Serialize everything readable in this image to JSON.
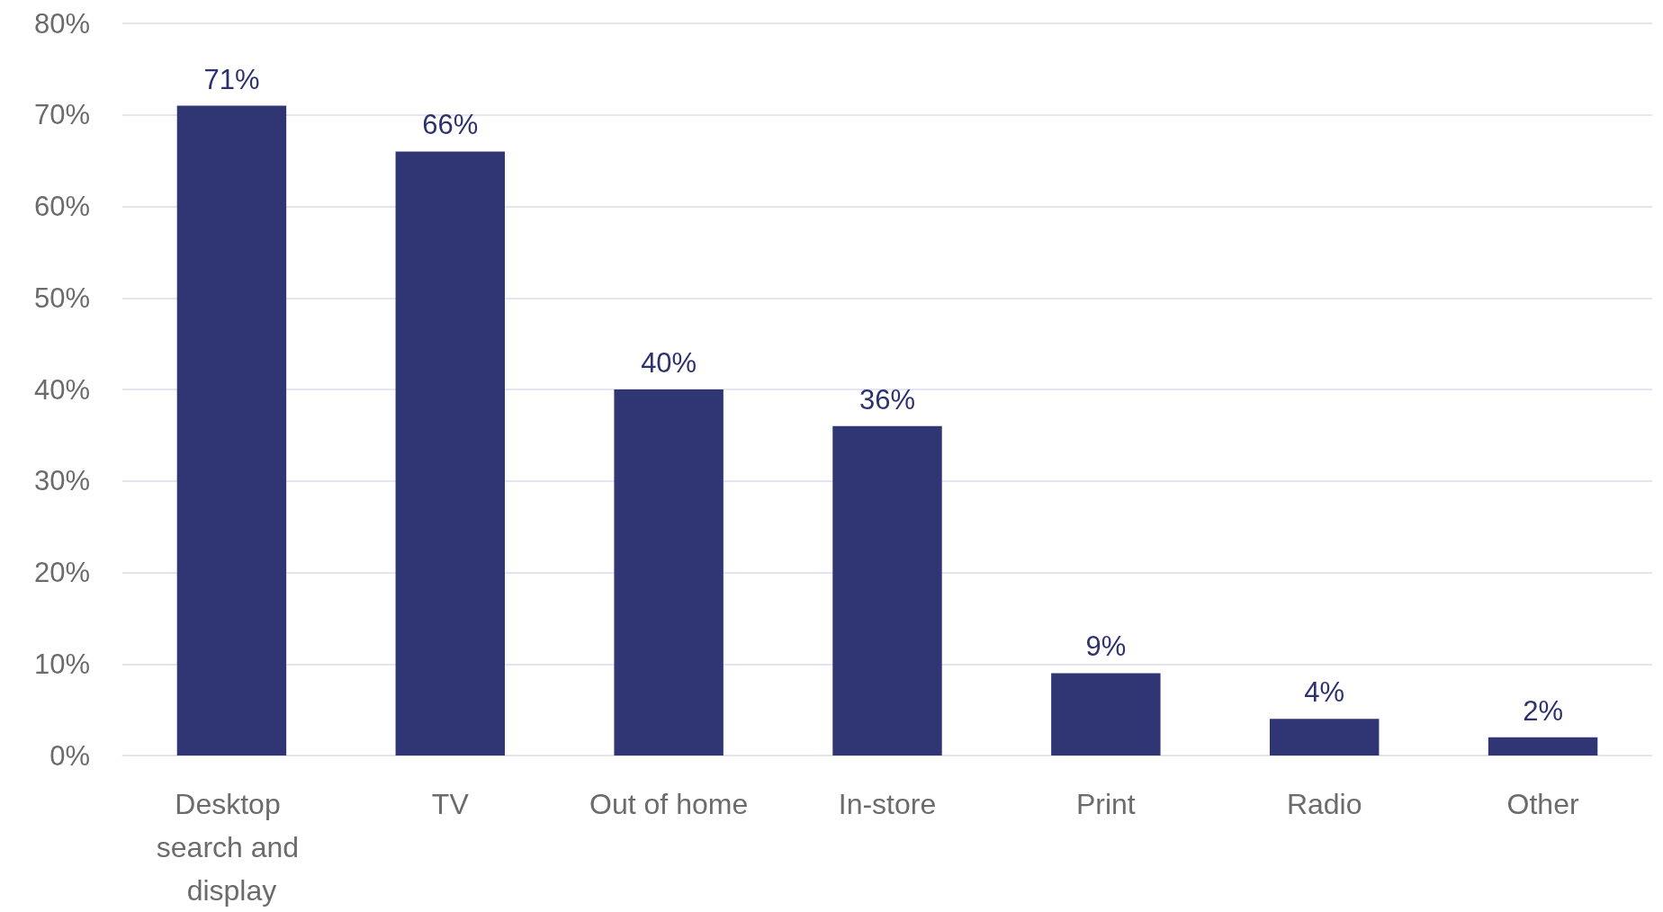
{
  "chart_data": {
    "type": "bar",
    "categories": [
      "Desktop search and display",
      "TV",
      "Out of home",
      "In-store",
      "Print",
      "Radio",
      "Other"
    ],
    "values": [
      71,
      66,
      40,
      36,
      9,
      4,
      2
    ],
    "value_labels": [
      "71%",
      "66%",
      "40%",
      "36%",
      "9%",
      "4%",
      "2%"
    ],
    "color": "#303574",
    "ylim": [
      0,
      80
    ],
    "yticks": [
      {
        "value": 0,
        "label": "0%"
      },
      {
        "value": 10,
        "label": "10%"
      },
      {
        "value": 20,
        "label": "20%"
      },
      {
        "value": 30,
        "label": "30%"
      },
      {
        "value": 40,
        "label": "40%"
      },
      {
        "value": 50,
        "label": "50%"
      },
      {
        "value": 60,
        "label": "60%"
      },
      {
        "value": 70,
        "label": "70%"
      },
      {
        "value": 80,
        "label": "80%"
      }
    ],
    "grid": true
  }
}
